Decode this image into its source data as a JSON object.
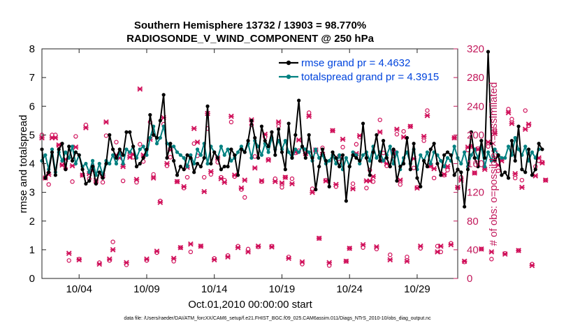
{
  "chart_data": {
    "type": "line",
    "title_line1": "Southern Hemisphere 13732 / 13903 = 98.770%",
    "title_line2": "RADIOSONDE_V_WIND_COMPONENT @ 250 hPa",
    "xlabel": "Oct.01,2010 00:00:00 start",
    "ylabel_left": "rmse and totalspread",
    "ylabel_right": "# of obs: o=possible; ×=assimilated",
    "footer": "data file: /Users/raeder/DAI/ATM_forcXX/CAM6_setup/f.e21.FHIST_BGC.f09_025.CAM6assim.011/Diags_NTrS_2010-10/obs_diag_output.nc",
    "x_range": [
      1.25,
      32
    ],
    "x_ticks": [
      4,
      9,
      14,
      19,
      24,
      29
    ],
    "x_tick_labels": [
      "10/04",
      "10/09",
      "10/14",
      "10/19",
      "10/24",
      "10/29"
    ],
    "ylim_left": [
      0,
      8
    ],
    "yticks_left": [
      "0",
      "1",
      "2",
      "3",
      "4",
      "5",
      "6",
      "7",
      "8"
    ],
    "ylim_right": [
      0,
      320
    ],
    "yticks_right": [
      "0",
      "40",
      "80",
      "120",
      "160",
      "200",
      "240",
      "280",
      "320"
    ],
    "colors": {
      "rmse": "#000000",
      "spread": "#008080",
      "obs": "#d0105a",
      "legend_text": "#0044dd",
      "right_axis": "#c2185b"
    },
    "series": [
      {
        "name": "rmse",
        "legend": "rmse grand pr = 4.4632",
        "x_start": 1.25,
        "x_step": 0.25,
        "values": [
          4.5,
          3.5,
          3.7,
          4.4,
          3.6,
          4.5,
          4.7,
          3.8,
          4.6,
          4.1,
          4.4,
          4.3,
          3.8,
          3.3,
          3.4,
          3.9,
          3.3,
          3.7,
          3.5,
          4.0,
          5.0,
          4.5,
          4.2,
          4.5,
          4.3,
          5.1,
          5.1,
          4.6,
          3.9,
          4.0,
          4.2,
          4.5,
          5.7,
          5.0,
          4.9,
          5.5,
          6.4,
          4.2,
          4.7,
          4.1,
          3.6,
          3.9,
          3.8,
          4.3,
          4.2,
          3.7,
          4.0,
          3.9,
          4.2,
          6.0,
          4.0,
          4.4,
          4.2,
          3.8,
          3.9,
          3.9,
          4.5,
          4.3,
          3.6,
          4.5,
          4.4,
          4.8,
          5.5,
          4.9,
          4.2,
          5.3,
          4.8,
          4.6,
          5.1,
          4.3,
          5.2,
          4.4,
          3.8,
          5.4,
          4.2,
          5.0,
          6.2,
          4.6,
          4.2,
          5.0,
          4.2,
          3.1,
          3.9,
          4.5,
          4.1,
          3.2,
          4.4,
          4.2,
          3.9,
          4.3,
          2.7,
          3.9,
          4.3,
          4.2,
          4.1,
          5.4,
          4.2,
          3.6,
          4.4,
          5.0,
          4.1,
          4.8,
          4.2,
          3.9,
          4.5,
          3.4,
          3.9,
          4.0,
          4.9,
          3.8,
          4.7,
          3.5,
          3.2,
          4.1,
          3.9,
          4.5,
          4.7,
          4.0,
          3.6,
          4.3,
          4.4,
          4.3,
          3.6,
          3.8,
          3.7,
          2.5,
          3.8,
          5.1,
          4.2,
          3.9,
          4.8,
          4.2,
          7.9,
          4.7,
          4.1,
          4.3,
          3.6,
          3.7,
          3.5,
          4.8,
          4.1,
          5.3,
          3.8,
          3.7,
          4.5,
          3.6,
          3.8,
          4.7,
          4.5
        ]
      },
      {
        "name": "totalspread",
        "legend": "totalspread grand pr = 4.3915",
        "x_start": 1.25,
        "x_step": 0.25,
        "values": [
          4.1,
          4.3,
          3.8,
          4.5,
          3.7,
          4.4,
          4.1,
          4.4,
          4.2,
          4.6,
          4.0,
          4.3,
          3.9,
          4.0,
          3.7,
          4.1,
          3.6,
          4.0,
          3.6,
          4.1,
          4.0,
          4.3,
          4.0,
          4.4,
          4.0,
          4.5,
          4.4,
          4.6,
          4.2,
          4.5,
          4.6,
          4.3,
          4.9,
          5.3,
          4.7,
          4.9,
          5.3,
          4.7,
          4.6,
          4.6,
          4.4,
          4.3,
          4.2,
          3.9,
          4.3,
          4.0,
          4.5,
          4.3,
          4.7,
          4.0,
          4.6,
          4.4,
          4.2,
          4.6,
          4.3,
          4.5,
          4.1,
          4.2,
          4.4,
          4.6,
          4.4,
          4.7,
          4.2,
          4.8,
          4.6,
          4.3,
          4.7,
          4.4,
          4.9,
          4.5,
          4.8,
          4.5,
          4.8,
          4.4,
          4.2,
          4.5,
          4.4,
          4.6,
          4.5,
          4.4,
          4.1,
          4.5,
          4.2,
          4.3,
          4.0,
          4.1,
          4.3,
          4.0,
          4.3,
          3.8,
          4.2,
          3.9,
          4.4,
          4.3,
          4.0,
          4.3,
          4.4,
          4.1,
          4.6,
          4.2,
          4.4,
          4.1,
          4.3,
          4.6,
          4.0,
          4.4,
          3.8,
          4.2,
          4.4,
          4.0,
          4.5,
          3.8,
          4.3,
          4.1,
          4.4,
          4.0,
          4.4,
          4.3,
          4.1,
          3.9,
          4.2,
          4.1,
          4.6,
          4.2,
          4.0,
          4.4,
          3.9,
          4.3,
          4.5,
          4.2,
          4.6,
          3.9,
          4.4,
          4.1,
          4.5,
          4.3,
          4.2,
          4.2,
          4.6,
          4.3,
          4.9,
          4.5,
          4.3,
          4.6,
          4.1,
          4.4,
          4.2,
          4.5
        ]
      },
      {
        "name": "obs_possible",
        "marker": "o",
        "x_start": 1.25,
        "x_step": 0.25,
        "values": [
          200,
          140,
          131,
          200,
          200,
          185,
          159,
          153,
          25,
          135,
          198,
          27,
          144,
          214,
          139,
          156,
          133,
          22,
          134,
          199,
          25,
          51,
          190,
          175,
          136,
          19,
          175,
          169,
          134,
          187,
          163,
          25,
          218,
          145,
          36,
          108,
          215,
          157,
          169,
          24,
          135,
          43,
          126,
          141,
          37,
          188,
          171,
          45,
          141,
          209,
          145,
          28,
          162,
          141,
          137,
          32,
          218,
          142,
          45,
          124,
          113,
          41,
          214,
          170,
          44,
          135,
          197,
          166,
          45,
          139,
          212,
          127,
          141,
          30,
          139,
          175,
          178,
          20,
          174,
          231,
          125,
          177,
          56,
          182,
          137,
          18,
          206,
          128,
          162,
          183,
          24,
          42,
          132,
          187,
          197,
          43,
          126,
          151,
          135,
          41,
          221,
          175,
          157,
          33,
          171,
          201,
          131,
          205,
          30,
          212,
          154,
          127,
          42,
          192,
          234,
          157,
          140,
          45,
          37,
          144,
          151,
          49,
          196,
          126,
          141,
          23,
          179,
          184,
          147,
          181,
          41,
          154,
          184,
          27,
          207,
          150,
          166,
          35,
          236,
          222,
          140,
          39,
          137,
          234,
          213,
          20,
          156,
          164,
          162,
          137
        ]
      },
      {
        "name": "obs_assimilated",
        "marker": "x",
        "x_start": 1.25,
        "x_step": 0.25,
        "values": [
          196,
          140,
          145,
          196,
          196,
          186,
          158,
          166,
          35,
          157,
          183,
          26,
          144,
          210,
          146,
          150,
          137,
          20,
          143,
          218,
          27,
          40,
          172,
          168,
          156,
          22,
          169,
          173,
          138,
          264,
          172,
          27,
          194,
          140,
          38,
          106,
          224,
          160,
          179,
          28,
          135,
          43,
          128,
          155,
          48,
          209,
          190,
          45,
          121,
          230,
          149,
          26,
          168,
          139,
          134,
          30,
          226,
          144,
          43,
          126,
          137,
          37,
          221,
          154,
          45,
          136,
          201,
          165,
          44,
          135,
          218,
          133,
          141,
          28,
          132,
          176,
          193,
          23,
          174,
          226,
          120,
          179,
          56,
          173,
          136,
          22,
          206,
          131,
          169,
          194,
          24,
          42,
          125,
          174,
          199,
          47,
          136,
          136,
          142,
          44,
          204,
          164,
          160,
          26,
          176,
          208,
          137,
          197,
          24,
          212,
          167,
          126,
          45,
          198,
          227,
          157,
          153,
          37,
          45,
          145,
          156,
          47,
          196,
          127,
          137,
          24,
          183,
          184,
          147,
          180,
          41,
          152,
          190,
          37,
          202,
          158,
          164,
          34,
          231,
          216,
          146,
          39,
          127,
          208,
          215,
          18,
          143,
          168,
          161,
          137
        ]
      }
    ]
  }
}
